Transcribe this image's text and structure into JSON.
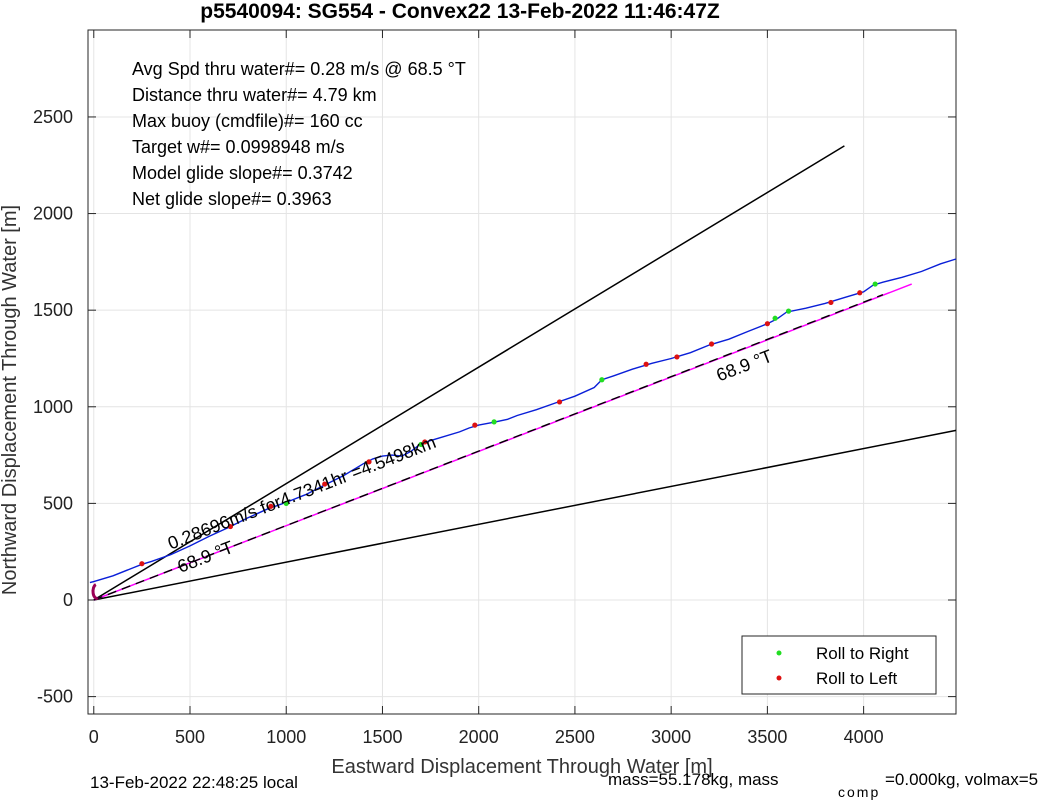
{
  "chart_data": {
    "type": "line",
    "title": "p5540094: SG554 - Convex22 13-Feb-2022 11:46:47Z",
    "xlabel": "Eastward Displacement Through Water [m]",
    "ylabel": "Northward Displacement Through Water [m]",
    "xlim": [
      -30,
      4480
    ],
    "ylim": [
      -590,
      2950
    ],
    "xticks": [
      0,
      500,
      1000,
      1500,
      2000,
      2500,
      3000,
      3500,
      4000
    ],
    "yticks": [
      -500,
      0,
      500,
      1000,
      1500,
      2000,
      2500
    ],
    "xtick_labels": [
      "0",
      "500",
      "1000",
      "1500",
      "2000",
      "2500",
      "3000",
      "3500",
      "4000"
    ],
    "ytick_labels": [
      "-500",
      "0",
      "500",
      "1000",
      "1500",
      "2000",
      "2500"
    ],
    "grid": true,
    "legend_position": "bottom-right",
    "stats": [
      "Avg Spd thru water#=  0.28 m/s @  68.5         °T",
      "Distance thru water#=  4.79 km",
      "Max buoy (cmdfile)#= 160 cc",
      "Target w#= 0.0998948 m/s",
      "Model glide slope#= 0.3742",
      "Net glide slope#= 0.3963"
    ],
    "annotations": [
      {
        "text": "68.9 °T",
        "x": 450,
        "y": 140,
        "angle_deg": 68.9
      },
      {
        "text": "0.28696m/s for4.7341hr =4.5498km",
        "x": 400,
        "y": 260,
        "angle_deg": 68.9
      },
      {
        "text": "68.9 °T",
        "x": 3250,
        "y": 1130,
        "angle_deg": 68.9
      }
    ],
    "series": [
      {
        "name": "track",
        "color": "#0a1fd8",
        "x": [
          -20,
          0,
          100,
          200,
          250,
          300,
          400,
          500,
          600,
          700,
          800,
          900,
          1000,
          1100,
          1200,
          1300,
          1400,
          1450,
          1500,
          1550,
          1600,
          1650,
          1700,
          1750,
          1800,
          1900,
          1950,
          2000,
          2080,
          2150,
          2200,
          2300,
          2400,
          2500,
          2600,
          2640,
          2700,
          2800,
          2900,
          3000,
          3050,
          3100,
          3200,
          3300,
          3400,
          3500,
          3550,
          3600,
          3700,
          3800,
          3900,
          4000,
          4050,
          4100,
          4200,
          4300,
          4400,
          4480
        ],
        "y": [
          90,
          95,
          125,
          165,
          185,
          200,
          235,
          280,
          330,
          375,
          425,
          470,
          505,
          545,
          595,
          645,
          705,
          730,
          745,
          750,
          745,
          770,
          810,
          825,
          840,
          870,
          890,
          905,
          920,
          935,
          955,
          985,
          1020,
          1055,
          1100,
          1140,
          1160,
          1195,
          1225,
          1250,
          1265,
          1280,
          1320,
          1350,
          1390,
          1430,
          1455,
          1490,
          1510,
          1535,
          1565,
          1595,
          1630,
          1645,
          1670,
          1700,
          1740,
          1765
        ]
      },
      {
        "name": "net heading",
        "color": "#ff00ff",
        "x": [
          0,
          4250
        ],
        "y": [
          0,
          1635
        ]
      },
      {
        "name": "dashed heading",
        "color": "#000000",
        "dashed": true,
        "x": [
          0,
          4100
        ],
        "y": [
          0,
          1580
        ]
      },
      {
        "name": "upper bound",
        "color": "#000000",
        "x": [
          0,
          3900
        ],
        "y": [
          0,
          2350
        ]
      },
      {
        "name": "lower bound",
        "color": "#000000",
        "x": [
          0,
          4480
        ],
        "y": [
          0,
          878
        ]
      }
    ],
    "points": {
      "roll_right": {
        "name": "Roll to Right",
        "color": "#22dd22",
        "x": [
          1000,
          1700,
          2080,
          2640,
          3540,
          3610,
          4060
        ],
        "y": [
          500,
          805,
          922,
          1140,
          1458,
          1495,
          1635
        ]
      },
      "roll_left": {
        "name": "Roll to Left",
        "color": "#dd1111",
        "x": [
          250,
          710,
          920,
          1200,
          1430,
          1720,
          1980,
          2420,
          2870,
          3030,
          3210,
          3500,
          3830,
          3980
        ],
        "y": [
          188,
          380,
          485,
          600,
          715,
          818,
          905,
          1025,
          1220,
          1258,
          1325,
          1430,
          1540,
          1590
        ]
      }
    },
    "origin_loop": {
      "color": "#990055",
      "cx": -10,
      "cy": 45,
      "r": 35
    }
  },
  "footer": {
    "local_time": "13-Feb-2022 22:48:25 local",
    "mass_text": "mass=55.178kg, mass",
    "comp_sub": "comp",
    "comp_text": "=0.000kg, volmax=5"
  }
}
